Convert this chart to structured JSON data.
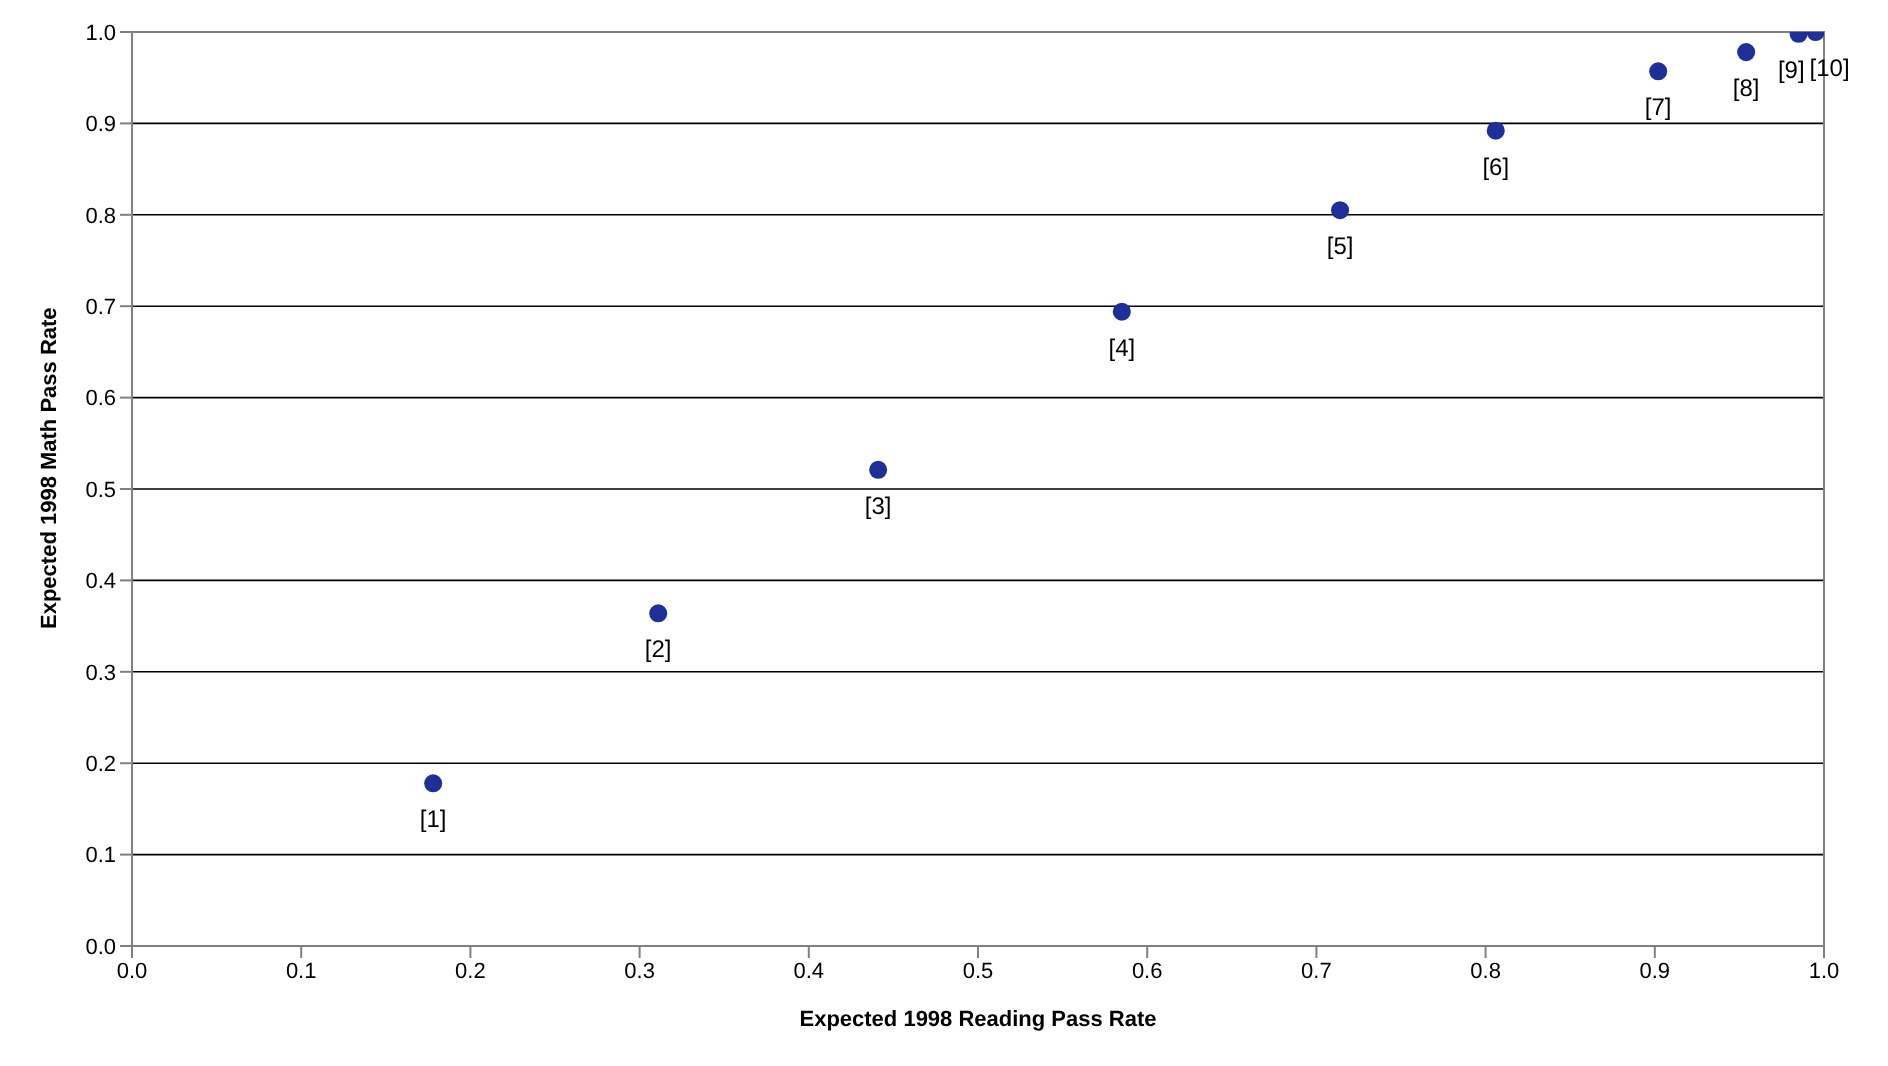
{
  "chart_data": {
    "type": "scatter",
    "xlabel": "Expected 1998 Reading Pass Rate",
    "ylabel": "Expected 1998 Math Pass Rate",
    "x": [
      0.178,
      0.311,
      0.441,
      0.585,
      0.714,
      0.806,
      0.902,
      0.954,
      0.985,
      0.995
    ],
    "series": [
      {
        "color": "#1f2f9a",
        "values": [
          0.178,
          0.364,
          0.521,
          0.694,
          0.805,
          0.892,
          0.957,
          0.978,
          0.998,
          1.0
        ]
      }
    ],
    "annotations": [
      {
        "text": "[1]",
        "x": 0.178,
        "y": 0.178
      },
      {
        "text": "[2]",
        "x": 0.311,
        "y": 0.364
      },
      {
        "text": "[3]",
        "x": 0.441,
        "y": 0.521
      },
      {
        "text": "[4]",
        "x": 0.585,
        "y": 0.694
      },
      {
        "text": "[5]",
        "x": 0.714,
        "y": 0.805
      },
      {
        "text": "[6]",
        "x": 0.806,
        "y": 0.892
      },
      {
        "text": "[7]",
        "x": 0.902,
        "y": 0.957
      },
      {
        "text": "[8]",
        "x": 0.954,
        "y": 0.978
      },
      {
        "text": "[9]",
        "x": 0.985,
        "y": 0.998
      },
      {
        "text": "[10]",
        "x": 0.995,
        "y": 1.0
      }
    ],
    "xlim": [
      0,
      1
    ],
    "ylim": [
      0,
      1
    ],
    "xticks": [
      {
        "value": 0,
        "label": "0.0"
      },
      {
        "value": 0.1,
        "label": "0.1"
      },
      {
        "value": 0.2,
        "label": "0.2"
      },
      {
        "value": 0.3,
        "label": "0.3"
      },
      {
        "value": 0.4,
        "label": "0.4"
      },
      {
        "value": 0.5,
        "label": "0.5"
      },
      {
        "value": 0.6,
        "label": "0.6"
      },
      {
        "value": 0.7,
        "label": "0.7"
      },
      {
        "value": 0.8,
        "label": "0.8"
      },
      {
        "value": 0.9,
        "label": "0.9"
      },
      {
        "value": 1,
        "label": "1.0"
      }
    ],
    "yticks": [
      {
        "value": 0,
        "label": "0.0"
      },
      {
        "value": 0.1,
        "label": "0.1"
      },
      {
        "value": 0.2,
        "label": "0.2"
      },
      {
        "value": 0.3,
        "label": "0.3"
      },
      {
        "value": 0.4,
        "label": "0.4"
      },
      {
        "value": 0.5,
        "label": "0.5"
      },
      {
        "value": 0.6,
        "label": "0.6"
      },
      {
        "value": 0.7,
        "label": "0.7"
      },
      {
        "value": 0.8,
        "label": "0.8"
      },
      {
        "value": 0.9,
        "label": "0.9"
      },
      {
        "value": 1,
        "label": "1.0"
      }
    ],
    "grid": "y",
    "marker": "circle"
  }
}
